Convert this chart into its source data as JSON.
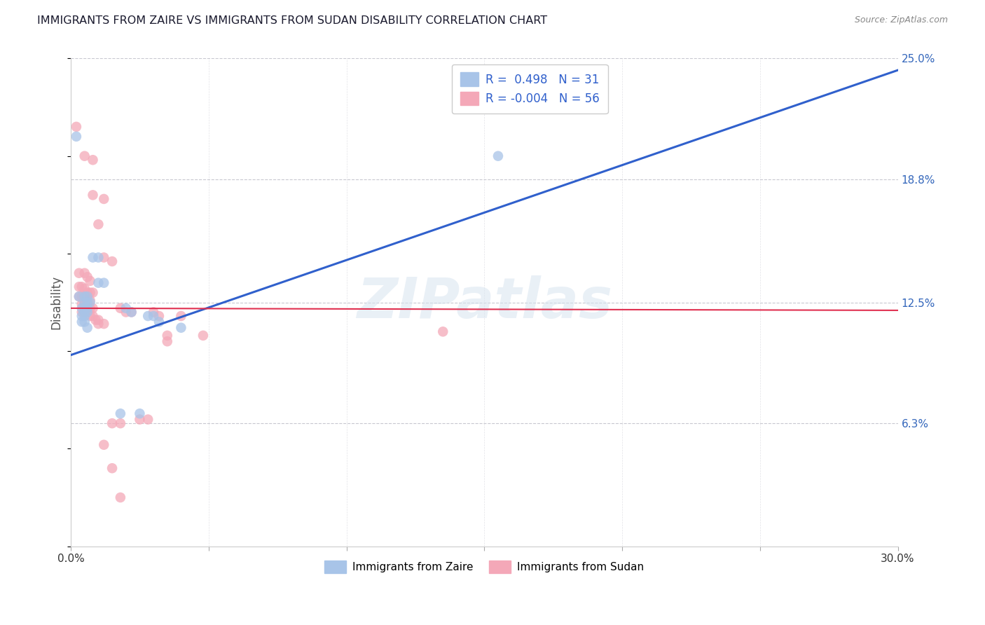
{
  "title": "IMMIGRANTS FROM ZAIRE VS IMMIGRANTS FROM SUDAN DISABILITY CORRELATION CHART",
  "source": "Source: ZipAtlas.com",
  "ylabel_label": "Disability",
  "xlim": [
    0.0,
    0.3
  ],
  "ylim": [
    0.0,
    0.25
  ],
  "ytick_vals_right": [
    0.25,
    0.188,
    0.125,
    0.063,
    0.0
  ],
  "ytick_labels_right": [
    "25.0%",
    "18.8%",
    "12.5%",
    "6.3%",
    ""
  ],
  "watermark": "ZIPatlas",
  "zaire_color": "#a8c4e8",
  "sudan_color": "#f4a8b8",
  "zaire_line_color": "#3060cc",
  "sudan_line_color": "#e03050",
  "background_color": "#ffffff",
  "grid_color": "#c8c8d0",
  "title_color": "#1a1a2e",
  "right_tick_color": "#3366bb",
  "legend_text_color": "#3060cc",
  "zaire_scatter": [
    [
      0.002,
      0.21
    ],
    [
      0.008,
      0.148
    ],
    [
      0.01,
      0.148
    ],
    [
      0.01,
      0.135
    ],
    [
      0.012,
      0.135
    ],
    [
      0.003,
      0.128
    ],
    [
      0.005,
      0.128
    ],
    [
      0.006,
      0.128
    ],
    [
      0.005,
      0.125
    ],
    [
      0.006,
      0.125
    ],
    [
      0.007,
      0.125
    ],
    [
      0.004,
      0.122
    ],
    [
      0.005,
      0.122
    ],
    [
      0.006,
      0.122
    ],
    [
      0.005,
      0.12
    ],
    [
      0.006,
      0.12
    ],
    [
      0.004,
      0.118
    ],
    [
      0.005,
      0.118
    ],
    [
      0.004,
      0.115
    ],
    [
      0.005,
      0.115
    ],
    [
      0.006,
      0.112
    ],
    [
      0.02,
      0.122
    ],
    [
      0.022,
      0.12
    ],
    [
      0.028,
      0.118
    ],
    [
      0.03,
      0.118
    ],
    [
      0.032,
      0.115
    ],
    [
      0.04,
      0.112
    ],
    [
      0.155,
      0.2
    ],
    [
      0.018,
      0.068
    ],
    [
      0.025,
      0.068
    ]
  ],
  "sudan_scatter": [
    [
      0.002,
      0.215
    ],
    [
      0.005,
      0.2
    ],
    [
      0.008,
      0.198
    ],
    [
      0.008,
      0.18
    ],
    [
      0.012,
      0.178
    ],
    [
      0.01,
      0.165
    ],
    [
      0.012,
      0.148
    ],
    [
      0.015,
      0.146
    ],
    [
      0.003,
      0.14
    ],
    [
      0.005,
      0.14
    ],
    [
      0.006,
      0.138
    ],
    [
      0.007,
      0.136
    ],
    [
      0.003,
      0.133
    ],
    [
      0.004,
      0.133
    ],
    [
      0.005,
      0.132
    ],
    [
      0.006,
      0.13
    ],
    [
      0.007,
      0.13
    ],
    [
      0.008,
      0.13
    ],
    [
      0.003,
      0.128
    ],
    [
      0.004,
      0.128
    ],
    [
      0.005,
      0.128
    ],
    [
      0.006,
      0.126
    ],
    [
      0.007,
      0.126
    ],
    [
      0.004,
      0.124
    ],
    [
      0.005,
      0.124
    ],
    [
      0.006,
      0.124
    ],
    [
      0.007,
      0.122
    ],
    [
      0.008,
      0.122
    ],
    [
      0.004,
      0.12
    ],
    [
      0.005,
      0.12
    ],
    [
      0.006,
      0.12
    ],
    [
      0.007,
      0.118
    ],
    [
      0.008,
      0.118
    ],
    [
      0.009,
      0.116
    ],
    [
      0.01,
      0.116
    ],
    [
      0.01,
      0.114
    ],
    [
      0.012,
      0.114
    ],
    [
      0.018,
      0.122
    ],
    [
      0.02,
      0.12
    ],
    [
      0.022,
      0.12
    ],
    [
      0.03,
      0.12
    ],
    [
      0.032,
      0.118
    ],
    [
      0.04,
      0.118
    ],
    [
      0.035,
      0.108
    ],
    [
      0.135,
      0.11
    ],
    [
      0.025,
      0.065
    ],
    [
      0.028,
      0.065
    ],
    [
      0.015,
      0.063
    ],
    [
      0.018,
      0.063
    ],
    [
      0.012,
      0.052
    ],
    [
      0.015,
      0.04
    ],
    [
      0.018,
      0.025
    ],
    [
      0.035,
      0.105
    ],
    [
      0.048,
      0.108
    ]
  ],
  "zaire_line": [
    0.0,
    0.098,
    0.3,
    0.244
  ],
  "sudan_line": [
    0.0,
    0.122,
    0.55,
    0.12
  ],
  "figsize": [
    14.06,
    8.92
  ],
  "dpi": 100
}
